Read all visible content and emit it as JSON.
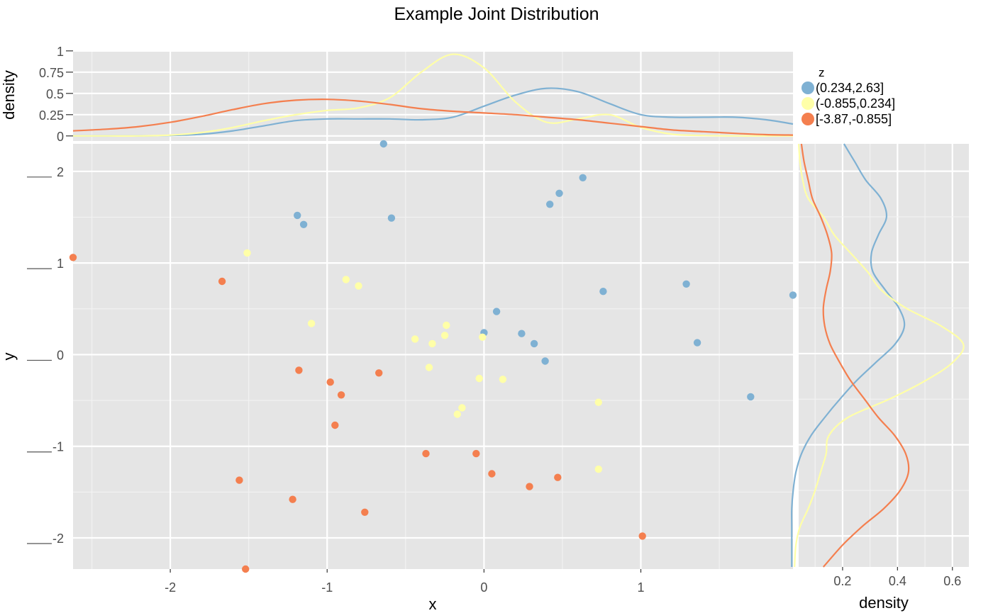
{
  "chart_data": {
    "type": "scatter",
    "title": "Example Joint Distribution",
    "xlabel": "x",
    "ylabel": "y",
    "top_ylabel": "density",
    "right_xlabel": "density",
    "xlim": [
      -2.62,
      1.97
    ],
    "ylim": [
      -2.34,
      2.3
    ],
    "grid": true,
    "background": "#e5e5e5",
    "x_ticks": [
      {
        "value": -2,
        "label": "-2"
      },
      {
        "value": -1,
        "label": "-1"
      },
      {
        "value": 0,
        "label": "0"
      },
      {
        "value": 1,
        "label": "1"
      }
    ],
    "y_ticks": [
      {
        "value": 2,
        "label": "2"
      },
      {
        "value": 1,
        "label": "1"
      },
      {
        "value": 0,
        "label": "0"
      },
      {
        "value": -1,
        "label": "-1"
      },
      {
        "value": -2,
        "label": "-2"
      }
    ],
    "top_ylim": [
      -0.06,
      0.99
    ],
    "top_ticks": [
      {
        "value": 1,
        "label": "1"
      },
      {
        "value": 0.75,
        "label": "0.75"
      },
      {
        "value": 0.5,
        "label": "0.5"
      },
      {
        "value": 0.25,
        "label": "0.25"
      },
      {
        "value": 0,
        "label": "0"
      }
    ],
    "right_xlim": [
      0.04,
      0.66
    ],
    "right_ticks": [
      {
        "value": 0.2,
        "label": "0.2"
      },
      {
        "value": 0.4,
        "label": "0.4"
      },
      {
        "value": 0.6,
        "label": "0.6"
      }
    ],
    "legend": {
      "title": "z",
      "position": "top-right"
    },
    "series": [
      {
        "name": "(0.234,2.63]",
        "color": "#7fb1d3",
        "points": [
          [
            -0.64,
            2.3
          ],
          [
            -1.19,
            1.52
          ],
          [
            -1.15,
            1.42
          ],
          [
            -0.59,
            1.49
          ],
          [
            0.42,
            1.64
          ],
          [
            0.48,
            1.76
          ],
          [
            0.63,
            1.93
          ],
          [
            0.76,
            0.69
          ],
          [
            1.29,
            0.77
          ],
          [
            1.36,
            0.13
          ],
          [
            1.97,
            0.65
          ],
          [
            0.08,
            0.47
          ],
          [
            0.0,
            0.24
          ],
          [
            0.24,
            0.23
          ],
          [
            0.32,
            0.12
          ],
          [
            0.39,
            -0.07
          ],
          [
            1.7,
            -0.46
          ]
        ],
        "x_density": [
          [
            -2.62,
            0.0
          ],
          [
            -2.4,
            0.0
          ],
          [
            -2.2,
            0.0
          ],
          [
            -2.0,
            0.005
          ],
          [
            -1.8,
            0.02
          ],
          [
            -1.6,
            0.06
          ],
          [
            -1.4,
            0.12
          ],
          [
            -1.2,
            0.18
          ],
          [
            -1.0,
            0.2
          ],
          [
            -0.8,
            0.2
          ],
          [
            -0.6,
            0.2
          ],
          [
            -0.4,
            0.19
          ],
          [
            -0.2,
            0.22
          ],
          [
            0.0,
            0.35
          ],
          [
            0.2,
            0.48
          ],
          [
            0.4,
            0.56
          ],
          [
            0.6,
            0.52
          ],
          [
            0.8,
            0.38
          ],
          [
            1.0,
            0.25
          ],
          [
            1.2,
            0.22
          ],
          [
            1.4,
            0.22
          ],
          [
            1.6,
            0.22
          ],
          [
            1.8,
            0.19
          ],
          [
            1.97,
            0.14
          ]
        ],
        "y_density": [
          [
            2.3,
            0.205
          ],
          [
            2.1,
            0.245
          ],
          [
            1.9,
            0.285
          ],
          [
            1.7,
            0.34
          ],
          [
            1.5,
            0.36
          ],
          [
            1.3,
            0.33
          ],
          [
            1.1,
            0.305
          ],
          [
            0.9,
            0.31
          ],
          [
            0.7,
            0.355
          ],
          [
            0.5,
            0.405
          ],
          [
            0.3,
            0.425
          ],
          [
            0.1,
            0.39
          ],
          [
            -0.1,
            0.32
          ],
          [
            -0.3,
            0.25
          ],
          [
            -0.5,
            0.19
          ],
          [
            -0.7,
            0.135
          ],
          [
            -0.9,
            0.085
          ],
          [
            -1.1,
            0.05
          ],
          [
            -1.3,
            0.03
          ],
          [
            -1.5,
            0.02
          ],
          [
            -1.7,
            0.015
          ],
          [
            -1.9,
            0.015
          ],
          [
            -2.1,
            0.015
          ],
          [
            -2.34,
            0.015
          ]
        ]
      },
      {
        "name": "(-0.855,0.234]",
        "color": "#ffffa8",
        "points": [
          [
            -1.51,
            1.11
          ],
          [
            -0.88,
            0.82
          ],
          [
            -0.8,
            0.75
          ],
          [
            -1.1,
            0.34
          ],
          [
            -0.44,
            0.17
          ],
          [
            -0.33,
            0.12
          ],
          [
            -0.24,
            0.32
          ],
          [
            -0.25,
            0.21
          ],
          [
            -0.01,
            0.19
          ],
          [
            -0.35,
            -0.14
          ],
          [
            -0.03,
            -0.26
          ],
          [
            0.12,
            -0.27
          ],
          [
            -0.14,
            -0.58
          ],
          [
            -0.17,
            -0.65
          ],
          [
            0.73,
            -0.52
          ],
          [
            0.73,
            -1.25
          ]
        ],
        "x_density": [
          [
            -2.62,
            0.0
          ],
          [
            -2.4,
            0.0
          ],
          [
            -2.2,
            0.0
          ],
          [
            -2.0,
            0.01
          ],
          [
            -1.8,
            0.04
          ],
          [
            -1.6,
            0.1
          ],
          [
            -1.4,
            0.18
          ],
          [
            -1.2,
            0.25
          ],
          [
            -1.0,
            0.3
          ],
          [
            -0.8,
            0.33
          ],
          [
            -0.6,
            0.45
          ],
          [
            -0.4,
            0.75
          ],
          [
            -0.2,
            0.96
          ],
          [
            0.0,
            0.8
          ],
          [
            0.2,
            0.4
          ],
          [
            0.4,
            0.16
          ],
          [
            0.6,
            0.2
          ],
          [
            0.8,
            0.25
          ],
          [
            1.0,
            0.1
          ],
          [
            1.2,
            0.02
          ],
          [
            1.4,
            0.005
          ],
          [
            1.6,
            0.0
          ],
          [
            1.8,
            0.0
          ],
          [
            1.97,
            0.0
          ]
        ],
        "y_density": [
          [
            2.3,
            0.04
          ],
          [
            2.1,
            0.045
          ],
          [
            1.9,
            0.055
          ],
          [
            1.7,
            0.075
          ],
          [
            1.5,
            0.13
          ],
          [
            1.3,
            0.17
          ],
          [
            1.1,
            0.23
          ],
          [
            0.9,
            0.29
          ],
          [
            0.7,
            0.34
          ],
          [
            0.5,
            0.43
          ],
          [
            0.3,
            0.56
          ],
          [
            0.1,
            0.64
          ],
          [
            -0.1,
            0.6
          ],
          [
            -0.3,
            0.5
          ],
          [
            -0.5,
            0.37
          ],
          [
            -0.7,
            0.22
          ],
          [
            -0.9,
            0.15
          ],
          [
            -1.1,
            0.14
          ],
          [
            -1.3,
            0.12
          ],
          [
            -1.5,
            0.1
          ],
          [
            -1.7,
            0.075
          ],
          [
            -1.9,
            0.045
          ],
          [
            -2.1,
            0.03
          ],
          [
            -2.34,
            0.025
          ]
        ]
      },
      {
        "name": "[-3.87,-0.855]",
        "color": "#f47f4f",
        "points": [
          [
            -2.62,
            1.06
          ],
          [
            -1.67,
            0.8
          ],
          [
            -1.18,
            -0.17
          ],
          [
            -0.98,
            -0.3
          ],
          [
            -0.91,
            -0.44
          ],
          [
            -0.95,
            -0.77
          ],
          [
            -0.67,
            -0.2
          ],
          [
            -0.37,
            -1.08
          ],
          [
            -0.05,
            -1.08
          ],
          [
            0.05,
            -1.3
          ],
          [
            0.29,
            -1.44
          ],
          [
            0.47,
            -1.34
          ],
          [
            -1.56,
            -1.37
          ],
          [
            -1.22,
            -1.58
          ],
          [
            -0.76,
            -1.72
          ],
          [
            1.01,
            -1.98
          ],
          [
            -1.52,
            -2.34
          ]
        ],
        "x_density": [
          [
            -2.62,
            0.06
          ],
          [
            -2.4,
            0.08
          ],
          [
            -2.2,
            0.11
          ],
          [
            -2.0,
            0.16
          ],
          [
            -1.8,
            0.23
          ],
          [
            -1.6,
            0.31
          ],
          [
            -1.4,
            0.38
          ],
          [
            -1.2,
            0.42
          ],
          [
            -1.0,
            0.43
          ],
          [
            -0.8,
            0.41
          ],
          [
            -0.6,
            0.37
          ],
          [
            -0.4,
            0.32
          ],
          [
            -0.2,
            0.29
          ],
          [
            0.0,
            0.27
          ],
          [
            0.2,
            0.25
          ],
          [
            0.4,
            0.22
          ],
          [
            0.6,
            0.19
          ],
          [
            0.8,
            0.15
          ],
          [
            1.0,
            0.11
          ],
          [
            1.2,
            0.07
          ],
          [
            1.4,
            0.05
          ],
          [
            1.6,
            0.03
          ],
          [
            1.8,
            0.015
          ],
          [
            1.97,
            0.01
          ]
        ],
        "y_density": [
          [
            2.3,
            0.05
          ],
          [
            2.1,
            0.06
          ],
          [
            1.9,
            0.075
          ],
          [
            1.7,
            0.09
          ],
          [
            1.5,
            0.12
          ],
          [
            1.3,
            0.145
          ],
          [
            1.1,
            0.16
          ],
          [
            0.9,
            0.155
          ],
          [
            0.7,
            0.14
          ],
          [
            0.5,
            0.13
          ],
          [
            0.3,
            0.135
          ],
          [
            0.1,
            0.155
          ],
          [
            -0.1,
            0.19
          ],
          [
            -0.3,
            0.23
          ],
          [
            -0.5,
            0.28
          ],
          [
            -0.7,
            0.33
          ],
          [
            -0.9,
            0.39
          ],
          [
            -1.1,
            0.43
          ],
          [
            -1.3,
            0.44
          ],
          [
            -1.5,
            0.41
          ],
          [
            -1.7,
            0.35
          ],
          [
            -1.9,
            0.27
          ],
          [
            -2.1,
            0.2
          ],
          [
            -2.34,
            0.13
          ]
        ]
      }
    ]
  }
}
